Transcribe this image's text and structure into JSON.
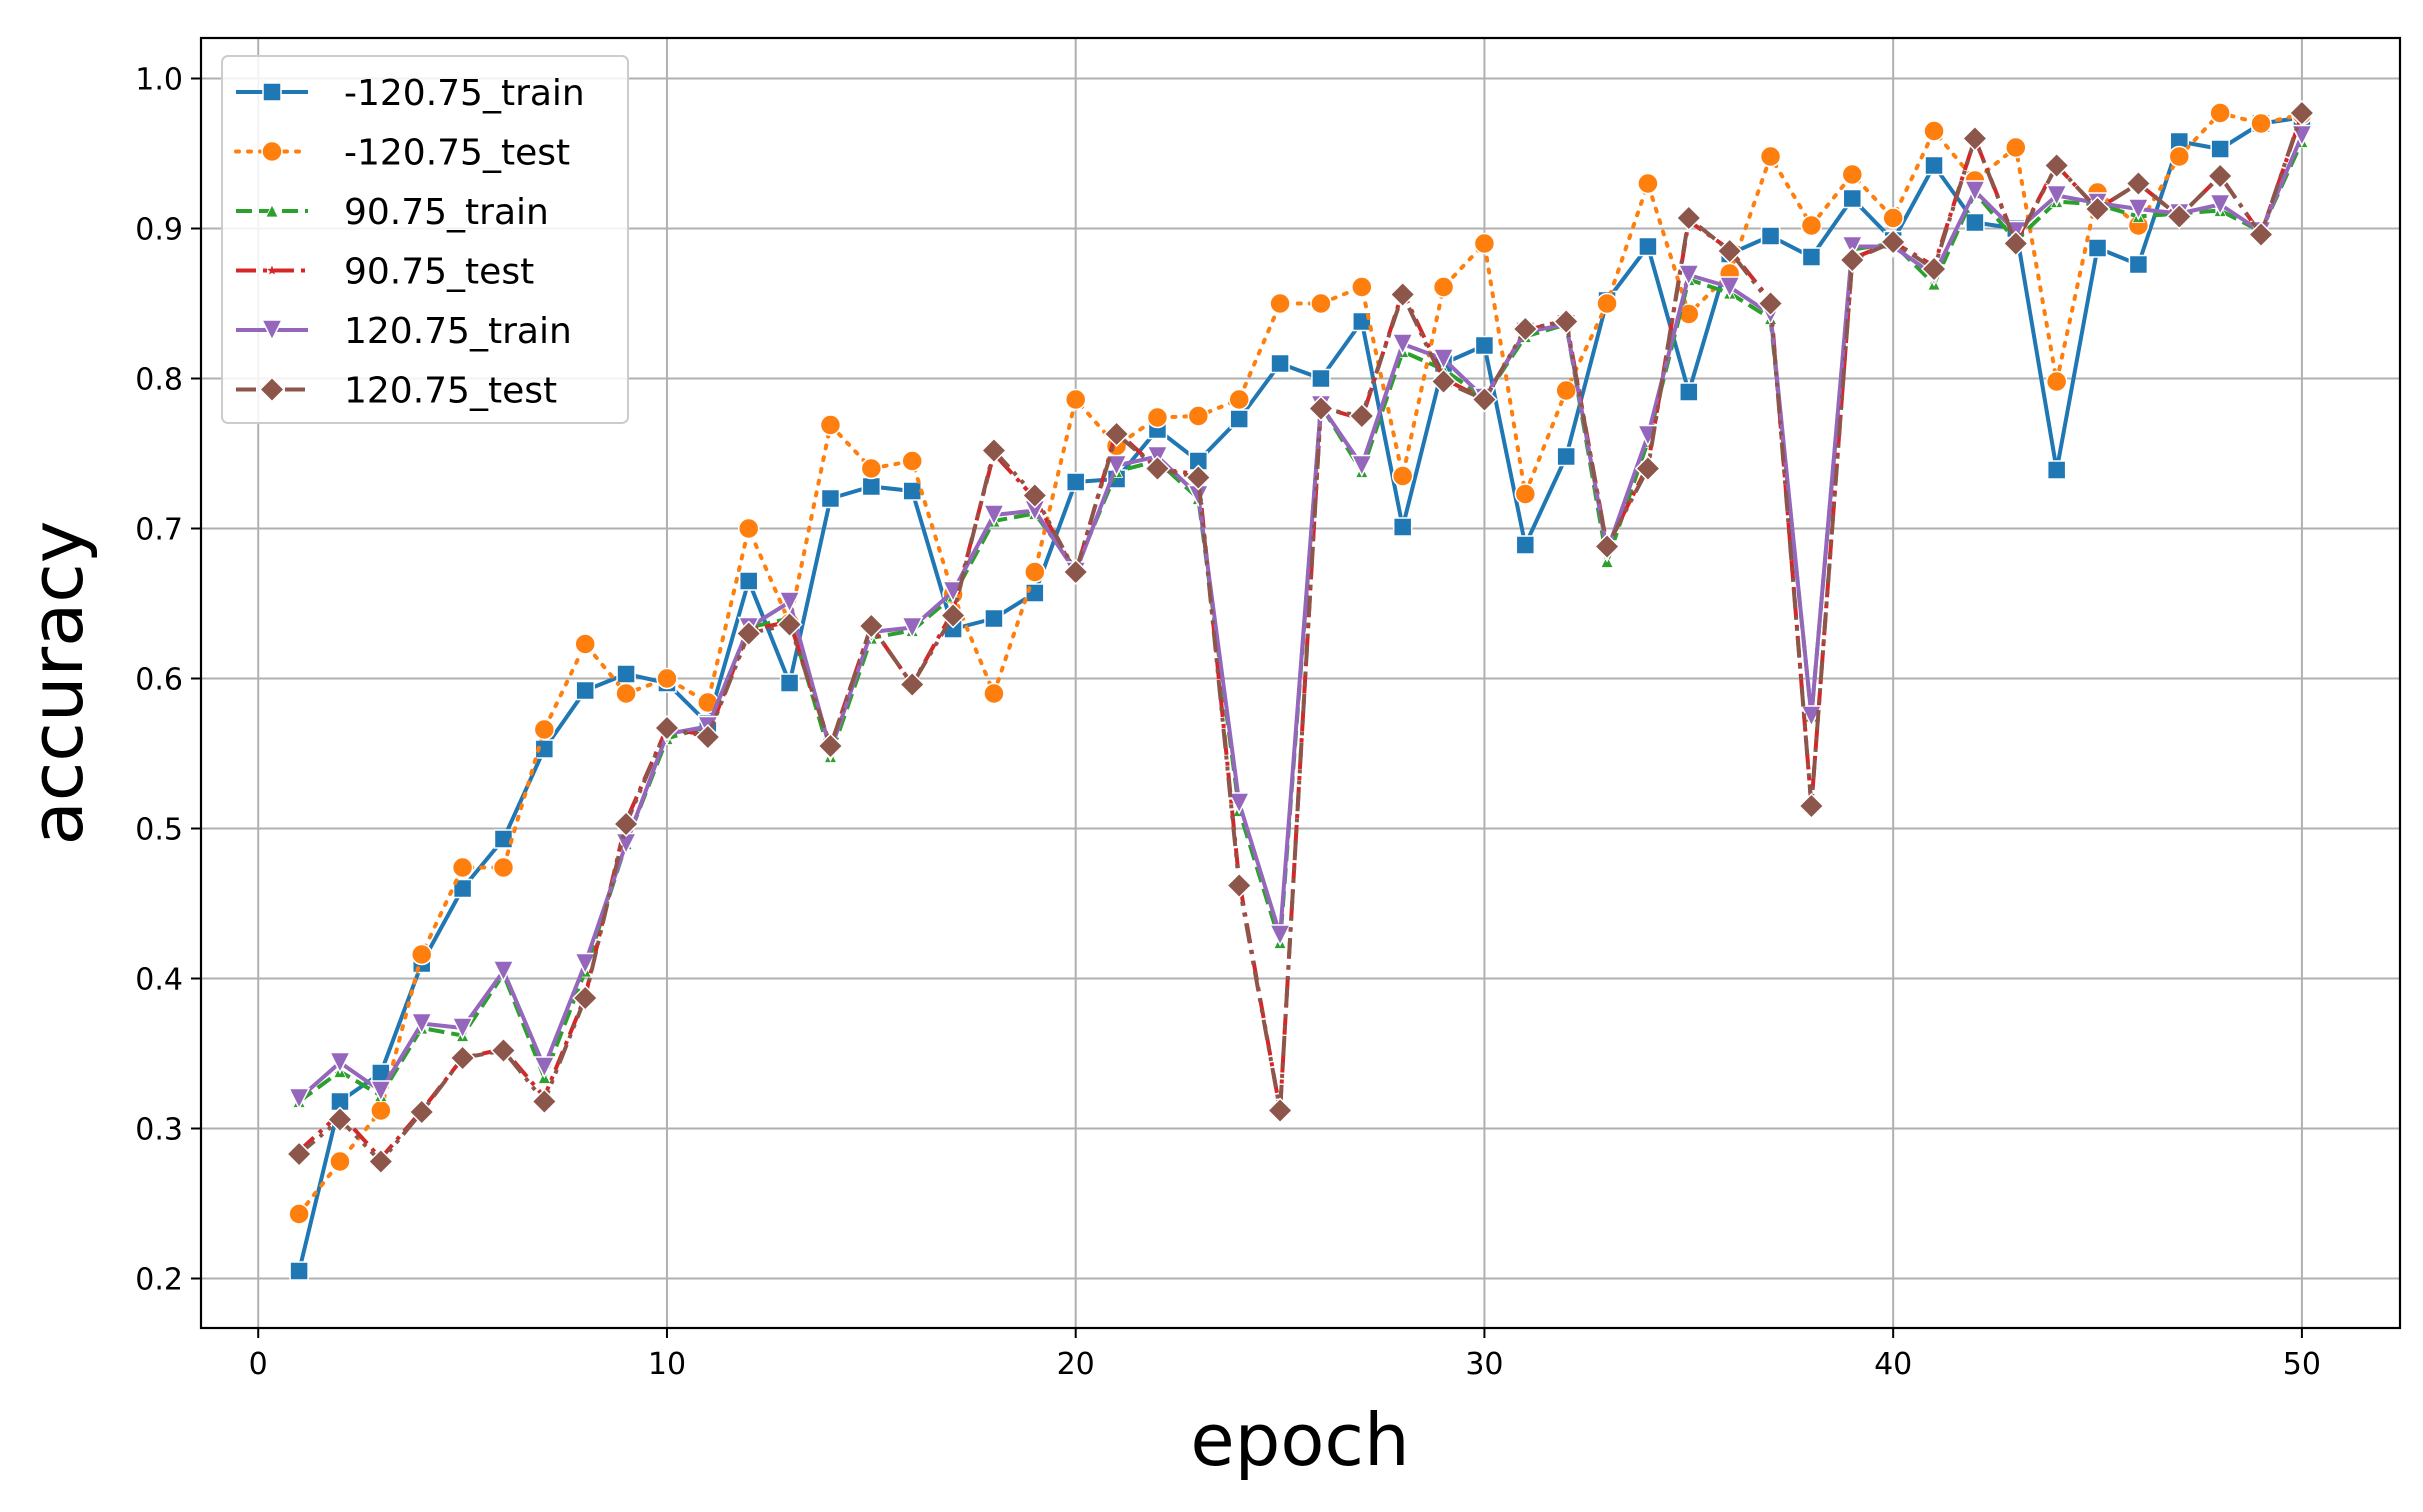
{
  "chart_data": {
    "type": "line",
    "xlabel": "epoch",
    "ylabel": "accuracy",
    "xlim": [
      -1.4,
      52.4
    ],
    "ylim": [
      0.167,
      1.027
    ],
    "xticks": [
      0,
      10,
      20,
      30,
      40,
      50
    ],
    "yticks": [
      0.2,
      0.3,
      0.4,
      0.5,
      0.6,
      0.7,
      0.8,
      0.9,
      1.0
    ],
    "grid": true,
    "legend_position": "top-left",
    "x": [
      1,
      2,
      3,
      4,
      5,
      6,
      7,
      8,
      9,
      10,
      11,
      12,
      13,
      14,
      15,
      16,
      17,
      18,
      19,
      20,
      21,
      22,
      23,
      24,
      25,
      26,
      27,
      28,
      29,
      30,
      31,
      32,
      33,
      34,
      35,
      36,
      37,
      38,
      39,
      40,
      41,
      42,
      43,
      44,
      45,
      46,
      47,
      48,
      49,
      50
    ],
    "series": [
      {
        "name": "-120.75_train",
        "color": "#1f77b4",
        "dash": "solid",
        "marker": "square",
        "values": [
          0.205,
          0.318,
          0.337,
          0.41,
          0.46,
          0.493,
          0.553,
          0.592,
          0.603,
          0.597,
          0.57,
          0.665,
          0.597,
          0.72,
          0.728,
          0.725,
          0.633,
          0.64,
          0.657,
          0.731,
          0.733,
          0.766,
          0.745,
          0.773,
          0.81,
          0.8,
          0.838,
          0.701,
          0.81,
          0.822,
          0.689,
          0.748,
          0.852,
          0.888,
          0.791,
          0.883,
          0.895,
          0.881,
          0.92,
          0.892,
          0.942,
          0.904,
          0.9,
          0.739,
          0.887,
          0.876,
          0.958,
          0.953,
          0.97,
          0.974
        ]
      },
      {
        "name": "-120.75_test",
        "color": "#ff7f0e",
        "dash": "dotted",
        "marker": "circle",
        "values": [
          0.243,
          0.278,
          0.312,
          0.416,
          0.474,
          0.474,
          0.566,
          0.623,
          0.59,
          0.6,
          0.584,
          0.7,
          0.637,
          0.769,
          0.74,
          0.745,
          0.656,
          0.59,
          0.671,
          0.786,
          0.755,
          0.774,
          0.775,
          0.786,
          0.85,
          0.85,
          0.861,
          0.735,
          0.861,
          0.89,
          0.723,
          0.792,
          0.85,
          0.93,
          0.843,
          0.87,
          0.948,
          0.902,
          0.936,
          0.907,
          0.965,
          0.932,
          0.954,
          0.798,
          0.924,
          0.902,
          0.948,
          0.977,
          0.97,
          0.976
        ]
      },
      {
        "name": "90.75_train",
        "color": "#2ca02c",
        "dash": "dashed",
        "marker": "triangle-up",
        "values": [
          0.318,
          0.338,
          0.322,
          0.367,
          0.362,
          0.403,
          0.334,
          0.405,
          0.49,
          0.56,
          0.568,
          0.634,
          0.64,
          0.548,
          0.627,
          0.632,
          0.655,
          0.705,
          0.71,
          0.673,
          0.738,
          0.745,
          0.72,
          0.512,
          0.424,
          0.782,
          0.738,
          0.818,
          0.806,
          0.787,
          0.828,
          0.836,
          0.678,
          0.758,
          0.866,
          0.857,
          0.84,
          0.575,
          0.886,
          0.89,
          0.863,
          0.924,
          0.892,
          0.918,
          0.916,
          0.908,
          0.91,
          0.912,
          0.898,
          0.958
        ]
      },
      {
        "name": "90.75_test",
        "color": "#d62728",
        "dash": "dashdot",
        "marker": "star",
        "values": [
          0.285,
          0.31,
          0.28,
          0.312,
          0.347,
          0.353,
          0.321,
          0.388,
          0.505,
          0.567,
          0.562,
          0.632,
          0.638,
          0.555,
          0.635,
          0.596,
          0.645,
          0.75,
          0.72,
          0.67,
          0.765,
          0.74,
          0.736,
          0.465,
          0.312,
          0.781,
          0.773,
          0.858,
          0.8,
          0.786,
          0.832,
          0.839,
          0.688,
          0.742,
          0.905,
          0.886,
          0.852,
          0.515,
          0.88,
          0.891,
          0.875,
          0.96,
          0.891,
          0.942,
          0.913,
          0.93,
          0.908,
          0.935,
          0.896,
          0.976
        ]
      },
      {
        "name": "120.75_train",
        "color": "#9467bd",
        "dash": "solid",
        "marker": "triangle-down",
        "values": [
          0.32,
          0.344,
          0.325,
          0.37,
          0.367,
          0.405,
          0.341,
          0.41,
          0.49,
          0.563,
          0.568,
          0.634,
          0.651,
          0.552,
          0.631,
          0.634,
          0.658,
          0.709,
          0.712,
          0.671,
          0.742,
          0.748,
          0.722,
          0.517,
          0.429,
          0.782,
          0.742,
          0.823,
          0.813,
          0.787,
          0.831,
          0.836,
          0.685,
          0.762,
          0.869,
          0.861,
          0.843,
          0.575,
          0.888,
          0.888,
          0.869,
          0.925,
          0.898,
          0.922,
          0.917,
          0.913,
          0.91,
          0.916,
          0.898,
          0.962
        ]
      },
      {
        "name": "120.75_test",
        "color": "#8c564b",
        "dash": "dashdotdot",
        "marker": "diamond",
        "values": [
          0.283,
          0.306,
          0.278,
          0.311,
          0.347,
          0.352,
          0.318,
          0.387,
          0.503,
          0.567,
          0.561,
          0.63,
          0.636,
          0.555,
          0.635,
          0.596,
          0.642,
          0.752,
          0.722,
          0.671,
          0.763,
          0.74,
          0.734,
          0.462,
          0.312,
          0.78,
          0.775,
          0.856,
          0.798,
          0.786,
          0.833,
          0.838,
          0.688,
          0.74,
          0.907,
          0.885,
          0.85,
          0.515,
          0.879,
          0.891,
          0.873,
          0.96,
          0.89,
          0.942,
          0.913,
          0.93,
          0.908,
          0.935,
          0.896,
          0.977
        ]
      }
    ]
  }
}
